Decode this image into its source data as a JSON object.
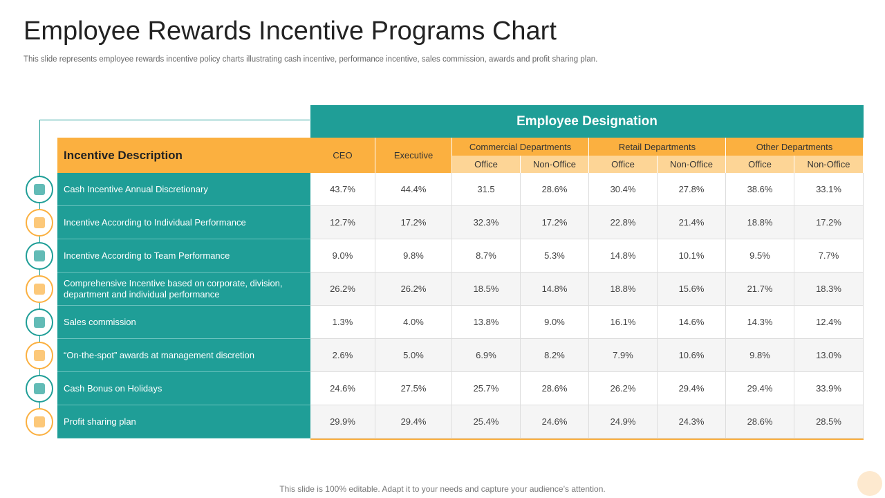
{
  "header": {
    "title": "Employee Rewards Incentive Programs Chart",
    "subtitle": "This slide represents employee rewards incentive policy charts illustrating cash incentive, performance incentive, sales commission, awards and profit sharing plan."
  },
  "table": {
    "band": "Employee Designation",
    "corner": "Incentive Description",
    "columns": [
      "CEO",
      "Executive"
    ],
    "groups": [
      {
        "name": "Commercial Departments",
        "subs": [
          "Office",
          "Non-Office"
        ]
      },
      {
        "name": "Retail Departments",
        "subs": [
          "Office",
          "Non-Office"
        ]
      },
      {
        "name": "Other Departments",
        "subs": [
          "Office",
          "Non-Office"
        ]
      }
    ],
    "rows": [
      {
        "label": "Cash Incentive Annual Discretionary",
        "cells": [
          "43.7%",
          "44.4%",
          "31.5",
          "28.6%",
          "30.4%",
          "27.8%",
          "38.6%",
          "33.1%"
        ]
      },
      {
        "label": "Incentive  According to Individual  Performance",
        "cells": [
          "12.7%",
          "17.2%",
          "32.3%",
          "17.2%",
          "22.8%",
          "21.4%",
          "18.8%",
          "17.2%"
        ]
      },
      {
        "label": "Incentive  According to Team Performance",
        "cells": [
          "9.0%",
          "9.8%",
          "8.7%",
          "5.3%",
          "14.8%",
          "10.1%",
          "9.5%",
          "7.7%"
        ]
      },
      {
        "label": "Comprehensive  Incentive  based on corporate,  division, department and individual  performance",
        "cells": [
          "26.2%",
          "26.2%",
          "18.5%",
          "14.8%",
          "18.8%",
          "15.6%",
          "21.7%",
          "18.3%"
        ]
      },
      {
        "label": "Sales commission",
        "cells": [
          "1.3%",
          "4.0%",
          "13.8%",
          "9.0%",
          "16.1%",
          "14.6%",
          "14.3%",
          "12.4%"
        ]
      },
      {
        "label": "“On-the-spot”  awards at management  discretion",
        "cells": [
          "2.6%",
          "5.0%",
          "6.9%",
          "8.2%",
          "7.9%",
          "10.6%",
          "9.8%",
          "13.0%"
        ]
      },
      {
        "label": "Cash Bonus on Holidays",
        "cells": [
          "24.6%",
          "27.5%",
          "25.7%",
          "28.6%",
          "26.2%",
          "29.4%",
          "29.4%",
          "33.9%"
        ]
      },
      {
        "label": "Profit sharing plan",
        "cells": [
          "29.9%",
          "29.4%",
          "25.4%",
          "24.6%",
          "24.9%",
          "24.3%",
          "28.6%",
          "28.5%"
        ]
      }
    ]
  },
  "footer": "This slide is 100% editable. Adapt it to your needs and capture your audience’s attention."
}
